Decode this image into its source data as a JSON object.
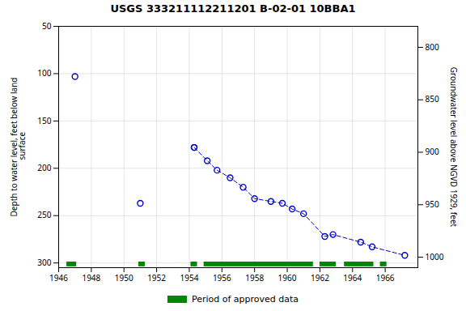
{
  "chart_data": {
    "type": "line",
    "title": "USGS 333211112211201 B-02-01 10BBA1",
    "ylabel": "Depth to water level, feet below land\n surface",
    "y2label": "Groundwater level above NGVD 1929, feet",
    "xlim": [
      1946,
      1968
    ],
    "xticks": [
      1946,
      1948,
      1950,
      1952,
      1954,
      1956,
      1958,
      1960,
      1962,
      1964,
      1966
    ],
    "ylim": [
      305,
      50
    ],
    "yticks": [
      50,
      100,
      150,
      200,
      250,
      300
    ],
    "y2lim": [
      1010,
      780
    ],
    "y2ticks": [
      800,
      850,
      900,
      950,
      1000
    ],
    "grid": true,
    "legend": "bottom",
    "series": [
      {
        "type": "scatter",
        "marker": "circle",
        "color": "#0000cc",
        "x": [
          1947.0,
          1951.0,
          1954.3
        ],
        "values": [
          103,
          237,
          178
        ]
      },
      {
        "type": "line",
        "marker": "circle",
        "line_style": "dashed",
        "color": "#0000cc",
        "x": [
          1954.3,
          1955.1,
          1955.7,
          1956.5,
          1957.3,
          1958.0,
          1959.0,
          1959.7,
          1960.3,
          1961.0,
          1962.3,
          1962.8,
          1964.5,
          1965.2,
          1967.2
        ],
        "values": [
          178,
          192,
          202,
          210,
          220,
          232,
          235,
          237,
          243,
          248,
          272,
          270,
          278,
          283,
          292
        ]
      }
    ],
    "approved_periods": {
      "name": "Period of approved data",
      "color": "#008800",
      "x": [
        [
          1946.5,
          1947.1
        ],
        [
          1950.9,
          1951.3
        ],
        [
          1954.1,
          1954.5
        ],
        [
          1954.9,
          1961.6
        ],
        [
          1962.0,
          1963.0
        ],
        [
          1963.5,
          1965.3
        ],
        [
          1965.7,
          1966.1
        ]
      ],
      "y": [
        299,
        304
      ]
    }
  }
}
